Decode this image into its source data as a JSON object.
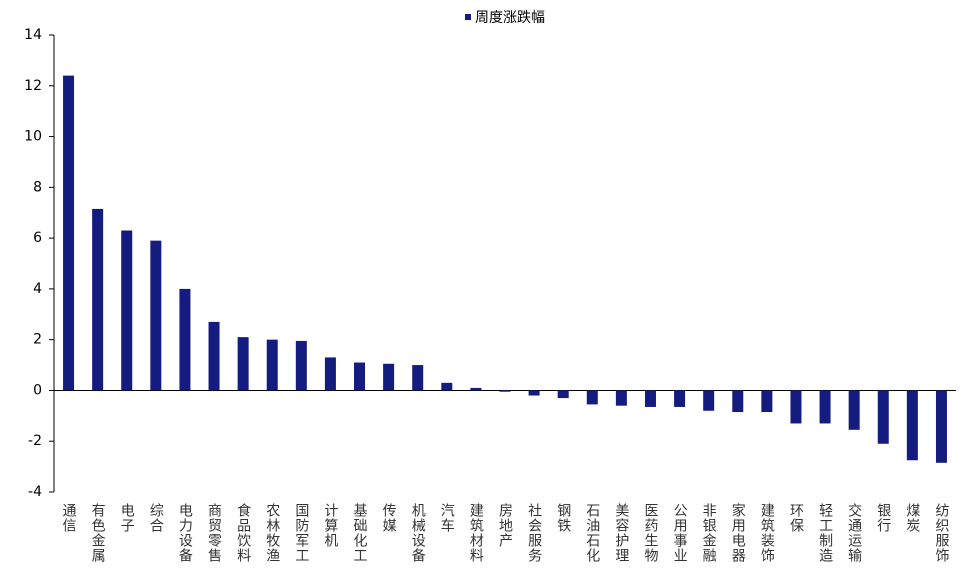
{
  "chart_data": {
    "type": "bar",
    "categories": [
      "通信",
      "有色金属",
      "电子",
      "综合",
      "电力设备",
      "商贸零售",
      "食品饮料",
      "农林牧渔",
      "国防军工",
      "计算机",
      "基础化工",
      "传媒",
      "机械设备",
      "汽车",
      "建筑材料",
      "房地产",
      "社会服务",
      "钢铁",
      "石油石化",
      "美容护理",
      "医药生物",
      "公用事业",
      "非银金融",
      "家用电器",
      "建筑装饰",
      "环保",
      "轻工制造",
      "交通运输",
      "银行",
      "煤炭",
      "纺织服饰"
    ],
    "series": [
      {
        "name": "周度涨跌幅",
        "color": "#151c80",
        "values": [
          12.4,
          7.15,
          6.3,
          5.9,
          4.0,
          2.7,
          2.1,
          2.0,
          1.95,
          1.3,
          1.1,
          1.05,
          1.0,
          0.3,
          0.1,
          -0.05,
          -0.2,
          -0.3,
          -0.55,
          -0.6,
          -0.65,
          -0.65,
          -0.8,
          -0.85,
          -0.85,
          -1.3,
          -1.3,
          -1.55,
          -2.1,
          -2.75,
          -2.85
        ]
      }
    ],
    "ylim": [
      -4,
      14
    ],
    "yticks": [
      -4,
      -2,
      0,
      2,
      4,
      6,
      8,
      10,
      12,
      14
    ],
    "legend": "top"
  }
}
